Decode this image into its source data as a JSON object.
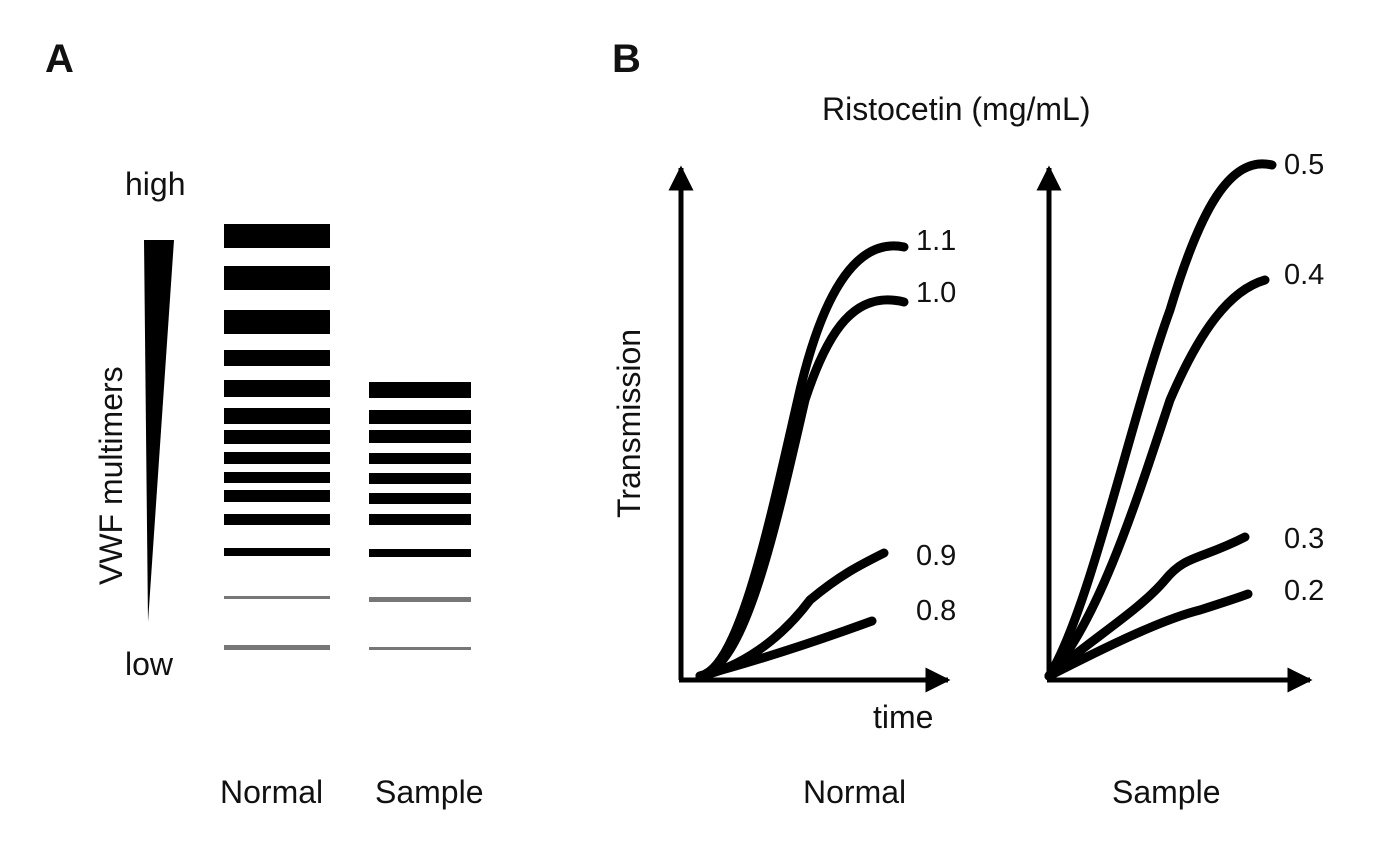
{
  "panel_a": {
    "label": "A",
    "axis_label": "VWF multimers",
    "high_label": "high",
    "low_label": "low",
    "lanes": [
      {
        "label": "Normal"
      },
      {
        "label": "Sample"
      }
    ]
  },
  "panel_b": {
    "label": "B",
    "title": "Ristocetin (mg/mL)",
    "y_label": "Transmission",
    "x_label": "time",
    "plots": [
      {
        "label": "Normal",
        "curves": [
          {
            "label": "1.1"
          },
          {
            "label": "1.0"
          },
          {
            "label": "0.9"
          },
          {
            "label": "0.8"
          }
        ]
      },
      {
        "label": "Sample",
        "curves": [
          {
            "label": "0.5"
          },
          {
            "label": "0.4"
          },
          {
            "label": "0.3"
          },
          {
            "label": "0.2"
          }
        ]
      }
    ]
  },
  "colors": {
    "ink": "#000000",
    "faint_band": "#777777",
    "background": "#ffffff"
  }
}
